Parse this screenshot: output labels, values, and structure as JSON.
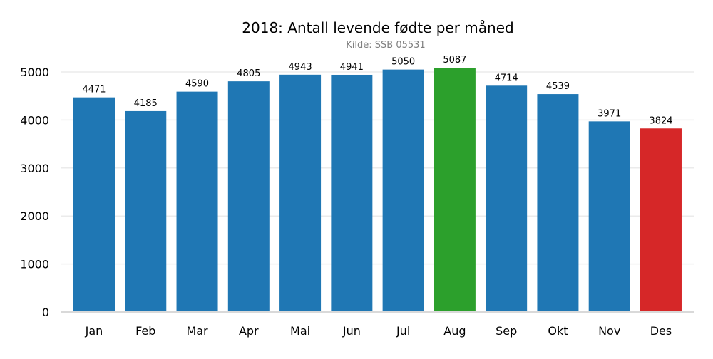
{
  "chart_data": {
    "type": "bar",
    "title": "2018: Antall levende fødte per måned",
    "subtitle": "Kilde: SSB 05531",
    "xlabel": "",
    "ylabel": "",
    "categories": [
      "Jan",
      "Feb",
      "Mar",
      "Apr",
      "Mai",
      "Jun",
      "Jul",
      "Aug",
      "Sep",
      "Okt",
      "Nov",
      "Des"
    ],
    "values": [
      4471,
      4185,
      4590,
      4805,
      4943,
      4941,
      5050,
      5087,
      4714,
      4539,
      3971,
      3824
    ],
    "ylim": [
      0,
      5400
    ],
    "yticks": [
      0,
      1000,
      2000,
      3000,
      4000,
      5000
    ],
    "grid": "horizontal",
    "colors": {
      "default": "#1f77b4",
      "highlight_max": "#2ca02c",
      "highlight_min": "#d62728",
      "grid": "#ebebeb",
      "baseline": "#d9d9d9",
      "subtitle": "#808080"
    },
    "highlights": {
      "Aug": "highlight_max",
      "Des": "highlight_min"
    }
  }
}
